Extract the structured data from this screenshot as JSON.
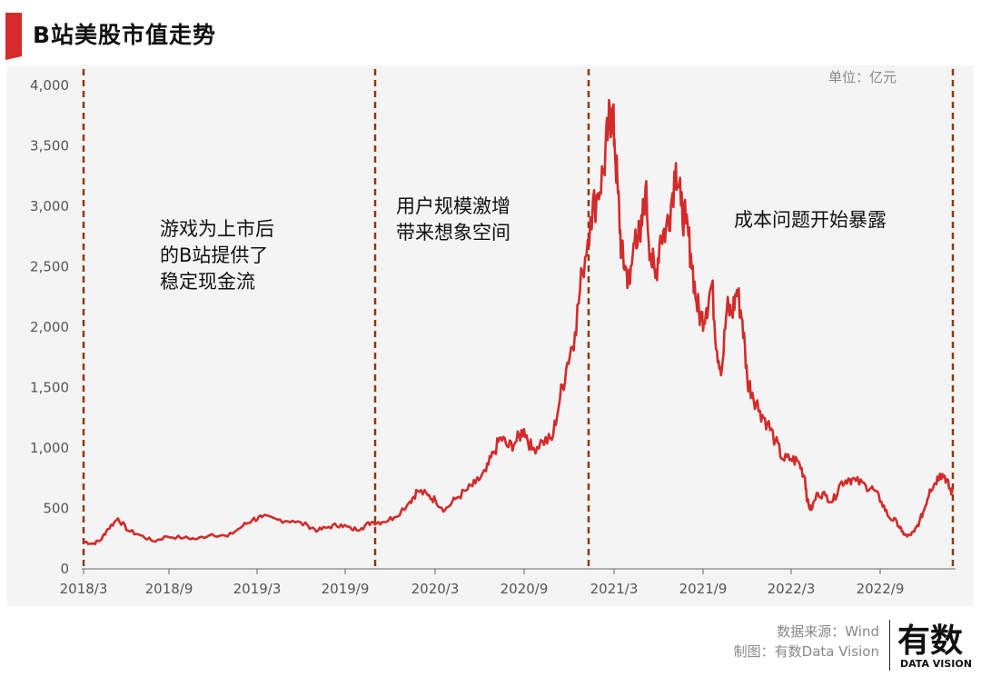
{
  "header": {
    "title": "B站美股市值走势"
  },
  "unit_label": "单位：亿元",
  "annotations": {
    "phase1": [
      "游戏为上市后",
      "的B站提供了",
      "稳定现金流"
    ],
    "phase2": [
      "用户规模激增",
      "带来想象空间"
    ],
    "phase3": [
      "成本问题开始暴露"
    ]
  },
  "footer": {
    "source": "数据来源：Wind",
    "credit": "制图：有数Data Vision"
  },
  "logo": {
    "main": "有数",
    "sub": "DATA VISION"
  },
  "colors": {
    "line": "#d42a2a",
    "divider": "#8b3a10",
    "accent": "#d42a2a",
    "plot_bg": "#f4f4f4"
  },
  "chart_data": {
    "type": "line",
    "title": "B站美股市值走势",
    "ylabel": "单位：亿元",
    "ylim": [
      0,
      4000
    ],
    "y_ticks": [
      "0",
      "500",
      "1,000",
      "1,500",
      "2,000",
      "2,500",
      "3,000",
      "3,500",
      "4,000"
    ],
    "x_ticks": [
      "2018/3",
      "2018/9",
      "2019/3",
      "2019/9",
      "2020/3",
      "2020/9",
      "2021/3",
      "2021/9",
      "2022/3",
      "2022/9"
    ],
    "xlim": [
      "2018-03-28",
      "2022-12-31"
    ],
    "grid": false,
    "dividers": [
      "2018-03-28",
      "2019-11-01",
      "2021-02-17",
      "2022-12-31"
    ],
    "series": [
      {
        "values": [
          [
            "2018-03-28",
            220
          ],
          [
            "2018-04-15",
            200
          ],
          [
            "2018-05-01",
            230
          ],
          [
            "2018-05-15",
            320
          ],
          [
            "2018-06-05",
            410
          ],
          [
            "2018-06-25",
            310
          ],
          [
            "2018-07-20",
            270
          ],
          [
            "2018-08-15",
            220
          ],
          [
            "2018-09-10",
            260
          ],
          [
            "2018-10-15",
            250
          ],
          [
            "2018-11-10",
            240
          ],
          [
            "2018-12-10",
            280
          ],
          [
            "2019-01-10",
            260
          ],
          [
            "2019-02-10",
            350
          ],
          [
            "2019-03-01",
            400
          ],
          [
            "2019-03-20",
            420
          ],
          [
            "2019-04-20",
            400
          ],
          [
            "2019-05-20",
            390
          ],
          [
            "2019-06-20",
            350
          ],
          [
            "2019-07-10",
            310
          ],
          [
            "2019-08-01",
            340
          ],
          [
            "2019-08-25",
            360
          ],
          [
            "2019-09-15",
            320
          ],
          [
            "2019-10-05",
            330
          ],
          [
            "2019-10-25",
            380
          ],
          [
            "2019-11-15",
            380
          ],
          [
            "2019-12-10",
            420
          ],
          [
            "2020-01-10",
            550
          ],
          [
            "2020-01-25",
            640
          ],
          [
            "2020-02-15",
            600
          ],
          [
            "2020-03-01",
            560
          ],
          [
            "2020-03-20",
            480
          ],
          [
            "2020-04-10",
            570
          ],
          [
            "2020-05-01",
            640
          ],
          [
            "2020-05-20",
            700
          ],
          [
            "2020-06-10",
            800
          ],
          [
            "2020-06-25",
            950
          ],
          [
            "2020-07-10",
            1080
          ],
          [
            "2020-07-25",
            1000
          ],
          [
            "2020-08-10",
            1050
          ],
          [
            "2020-08-25",
            1150
          ],
          [
            "2020-09-10",
            980
          ],
          [
            "2020-10-01",
            1050
          ],
          [
            "2020-10-20",
            1060
          ],
          [
            "2020-11-05",
            1400
          ],
          [
            "2020-11-20",
            1700
          ],
          [
            "2020-12-05",
            1950
          ],
          [
            "2020-12-20",
            2450
          ],
          [
            "2021-01-05",
            2900
          ],
          [
            "2021-01-20",
            3100
          ],
          [
            "2021-02-01",
            3300
          ],
          [
            "2021-02-10",
            3650
          ],
          [
            "2021-02-17",
            3800
          ],
          [
            "2021-02-22",
            3550
          ],
          [
            "2021-03-01",
            3100
          ],
          [
            "2021-03-08",
            2600
          ],
          [
            "2021-03-15",
            2500
          ],
          [
            "2021-03-25",
            2350
          ],
          [
            "2021-04-05",
            2800
          ],
          [
            "2021-04-15",
            2700
          ],
          [
            "2021-04-25",
            3150
          ],
          [
            "2021-05-05",
            2600
          ],
          [
            "2021-05-15",
            2400
          ],
          [
            "2021-05-25",
            2750
          ],
          [
            "2021-06-05",
            2800
          ],
          [
            "2021-06-15",
            3000
          ],
          [
            "2021-06-25",
            3350
          ],
          [
            "2021-07-05",
            3000
          ],
          [
            "2021-07-15",
            2850
          ],
          [
            "2021-07-25",
            2600
          ],
          [
            "2021-08-05",
            2200
          ],
          [
            "2021-08-15",
            2050
          ],
          [
            "2021-08-25",
            2150
          ],
          [
            "2021-09-05",
            2350
          ],
          [
            "2021-09-15",
            1800
          ],
          [
            "2021-09-25",
            1650
          ],
          [
            "2021-10-05",
            2150
          ],
          [
            "2021-10-15",
            2100
          ],
          [
            "2021-10-25",
            2300
          ],
          [
            "2021-11-05",
            2050
          ],
          [
            "2021-11-15",
            1550
          ],
          [
            "2021-11-25",
            1450
          ],
          [
            "2021-12-10",
            1300
          ],
          [
            "2021-12-25",
            1200
          ],
          [
            "2022-01-10",
            1050
          ],
          [
            "2022-01-25",
            900
          ],
          [
            "2022-02-10",
            900
          ],
          [
            "2022-02-25",
            880
          ],
          [
            "2022-03-10",
            750
          ],
          [
            "2022-03-15",
            550
          ],
          [
            "2022-03-22",
            480
          ],
          [
            "2022-04-05",
            620
          ],
          [
            "2022-04-20",
            600
          ],
          [
            "2022-05-05",
            550
          ],
          [
            "2022-05-20",
            700
          ],
          [
            "2022-06-05",
            740
          ],
          [
            "2022-06-20",
            720
          ],
          [
            "2022-07-10",
            680
          ],
          [
            "2022-07-25",
            650
          ],
          [
            "2022-08-10",
            550
          ],
          [
            "2022-08-25",
            420
          ],
          [
            "2022-09-10",
            380
          ],
          [
            "2022-09-20",
            300
          ],
          [
            "2022-10-01",
            260
          ],
          [
            "2022-10-15",
            300
          ],
          [
            "2022-10-25",
            380
          ],
          [
            "2022-11-05",
            500
          ],
          [
            "2022-11-15",
            650
          ],
          [
            "2022-11-25",
            700
          ],
          [
            "2022-12-05",
            780
          ],
          [
            "2022-12-15",
            760
          ],
          [
            "2022-12-25",
            650
          ],
          [
            "2022-12-31",
            620
          ]
        ]
      }
    ]
  }
}
